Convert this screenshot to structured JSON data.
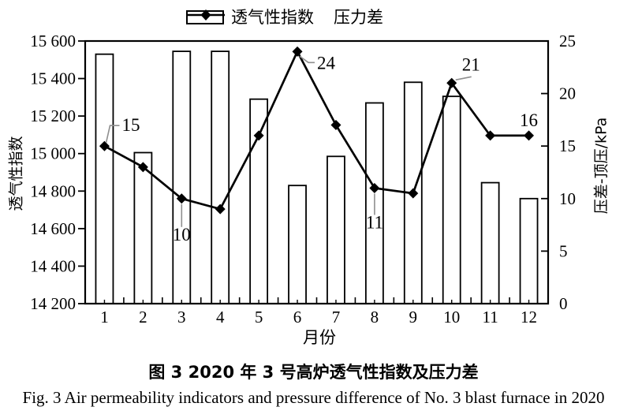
{
  "figure": {
    "legend": {
      "bar_label": "透气性指数",
      "line_label": "压力差"
    },
    "axes": {
      "left": {
        "title": "透气性指数",
        "tick_labels": [
          "15 600",
          "15 400",
          "15 200",
          "15 000",
          "14 800",
          "14 600",
          "14 400",
          "14 200"
        ]
      },
      "right": {
        "title": "压差-顶压/kPa",
        "tick_labels": [
          "25",
          "20",
          "15",
          "10",
          "5",
          "0"
        ]
      },
      "x": {
        "title": "月份",
        "tick_labels": [
          "1",
          "2",
          "3",
          "4",
          "5",
          "6",
          "7",
          "8",
          "9",
          "10",
          "11",
          "12"
        ]
      }
    },
    "captions": {
      "zh": "图 3  2020 年 3 号高炉透气性指数及压力差",
      "en": "Fig. 3  Air permeability indicators and pressure difference of No. 3 blast furnace in 2020"
    }
  },
  "chart_data": {
    "type": "combo",
    "title": "图 3  2020 年 3 号高炉透气性指数及压力差",
    "categories": [
      1,
      2,
      3,
      4,
      5,
      6,
      7,
      8,
      9,
      10,
      11,
      12
    ],
    "xlabel": "月份",
    "ylabel_left": "透气性指数",
    "ylabel_right": "压差-顶压/kPa",
    "left_ylim": [
      14200,
      15600
    ],
    "right_ylim": [
      0,
      25
    ],
    "left_tick_step": 200,
    "right_tick_step": 5,
    "grid": false,
    "legend_position": "top",
    "series": [
      {
        "name": "透气性指数",
        "type": "bar",
        "axis": "left",
        "values": [
          15530,
          15005,
          15545,
          15545,
          15290,
          14830,
          14985,
          15270,
          15380,
          15305,
          14845,
          14760
        ]
      },
      {
        "name": "压力差",
        "type": "line",
        "axis": "right",
        "marker": "diamond",
        "values": [
          15,
          13,
          10,
          9,
          16,
          24,
          17,
          11,
          10.5,
          21,
          16,
          16
        ]
      }
    ],
    "annotations": [
      {
        "month": 1,
        "text": "15"
      },
      {
        "month": 3,
        "text": "10"
      },
      {
        "month": 6,
        "text": "24"
      },
      {
        "month": 8,
        "text": "11"
      },
      {
        "month": 10,
        "text": "21"
      },
      {
        "month": 12,
        "text": "16"
      }
    ]
  },
  "colors": {
    "ink": "#000000",
    "callout": "#8f8f8f",
    "bar_fill": "#ffffff",
    "background": "#ffffff"
  }
}
